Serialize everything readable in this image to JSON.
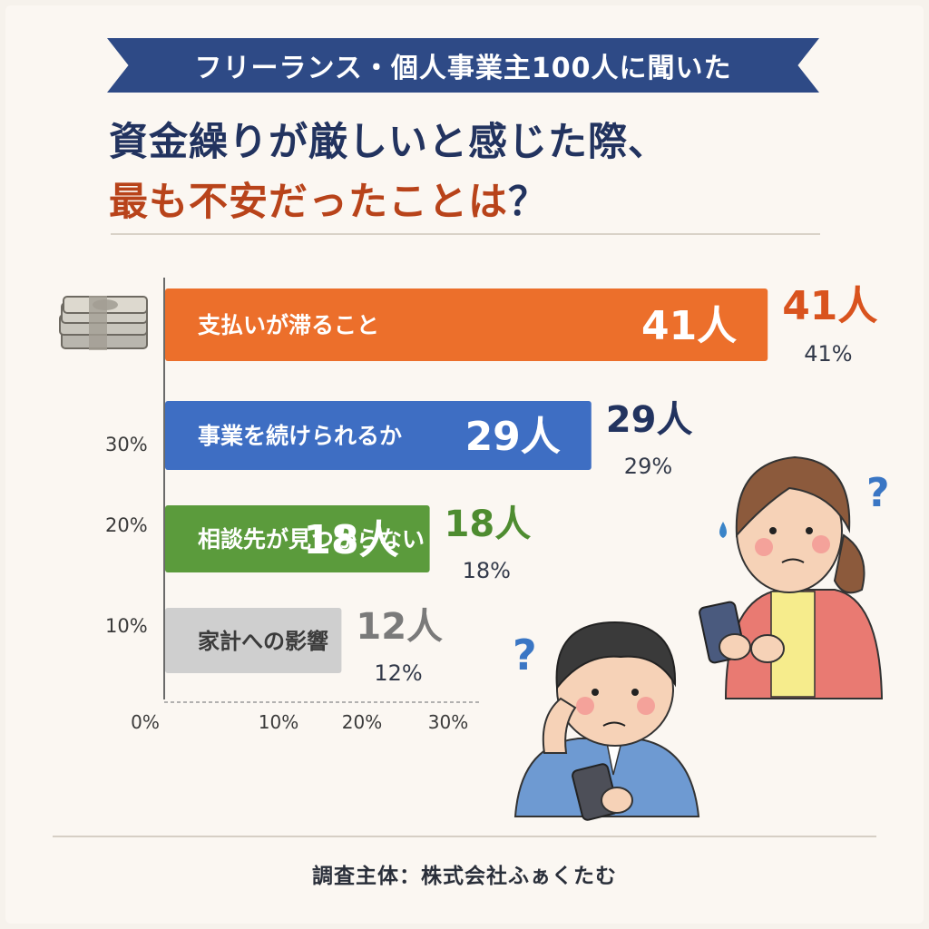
{
  "header": {
    "ribbon": "フリーランス・個人事業主100人に聞いた",
    "title_line1": "資金繰りが厳しいと感じた際、",
    "title_line2": "最も不安だったことは",
    "title_q": "？"
  },
  "chart_data": {
    "type": "bar",
    "orientation": "horizontal",
    "categories": [
      "支払いが滞ること",
      "事業を続けられるか",
      "相談先が見つからない",
      "家計への影響"
    ],
    "values": [
      41,
      29,
      18,
      12
    ],
    "value_labels": [
      "41人",
      "29人",
      "18人",
      "12人"
    ],
    "percent_labels": [
      "41%",
      "29%",
      "18%",
      "12%"
    ],
    "colors": [
      "#ec6f2b",
      "#3e6ec3",
      "#5b9b3c",
      "#cfcfcf"
    ],
    "label_colors": [
      "#ffffff",
      "#ffffff",
      "#ffffff",
      "#3b3b3b"
    ],
    "outer_value_colors": [
      "#d9531e",
      "#22335f",
      "#4e8c30",
      "#7a7a7a"
    ],
    "y_tick_labels": [
      "30%",
      "20%",
      "10%"
    ],
    "x_tick_labels": [
      "0%",
      "10%",
      "20%",
      "30%"
    ],
    "grid": false
  },
  "footer": {
    "text": "調査主体：株式会社ふぁくたむ"
  },
  "icons": [
    "money-stack-icon",
    "question-mark-icon",
    "sweat-drop-icon",
    "worried-man-illustration",
    "worried-woman-illustration"
  ]
}
